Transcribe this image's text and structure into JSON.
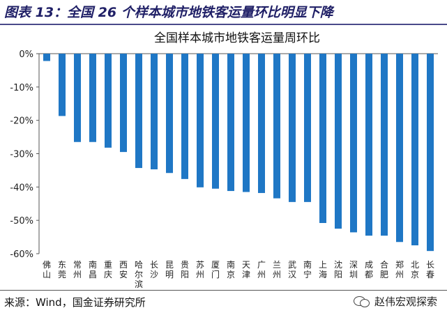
{
  "figure_title": "图表 13：全国 26 个样本城市地铁客运量环比明显下降",
  "source_note": "来源：Wind，国金证券研究所",
  "watermark": "赵伟宏观探索",
  "colors": {
    "bar": "#1f77c5",
    "title": "#1f1f66"
  },
  "chart_data": {
    "type": "bar",
    "title": "全国样本城市地铁客运量周环比",
    "xlabel": "",
    "ylabel": "",
    "ylim": [
      -0.6,
      0
    ],
    "yticks": [
      0,
      -0.1,
      -0.2,
      -0.3,
      -0.4,
      -0.5,
      -0.6
    ],
    "ytick_labels": [
      "0%",
      "-10%",
      "-20%",
      "-30%",
      "-40%",
      "-50%",
      "-60%"
    ],
    "grid": false,
    "legend": "none",
    "categories": [
      "佛山",
      "东莞",
      "常州",
      "南昌",
      "重庆",
      "西安",
      "哈尔滨",
      "长沙",
      "昆明",
      "贵阳",
      "苏州",
      "厦门",
      "南京",
      "天津",
      "广州",
      "兰州",
      "武汉",
      "南宁",
      "上海",
      "沈阳",
      "深圳",
      "成都",
      "合肥",
      "郑州",
      "北京",
      "长春"
    ],
    "values": [
      -0.022,
      -0.187,
      -0.265,
      -0.265,
      -0.282,
      -0.295,
      -0.343,
      -0.347,
      -0.358,
      -0.376,
      -0.401,
      -0.405,
      -0.412,
      -0.415,
      -0.418,
      -0.434,
      -0.445,
      -0.445,
      -0.508,
      -0.525,
      -0.536,
      -0.546,
      -0.546,
      -0.565,
      -0.575,
      -0.592
    ]
  }
}
